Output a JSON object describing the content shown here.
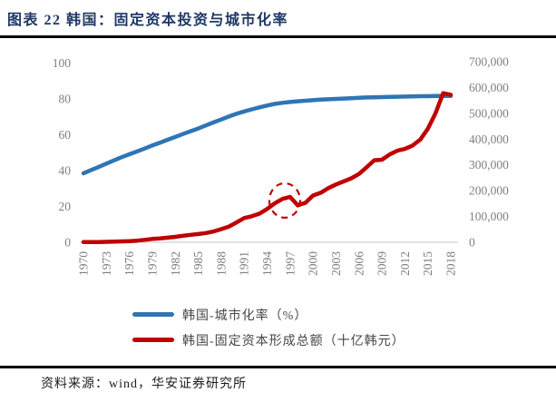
{
  "title": "图表 22 韩国：固定资本投资与城市化率",
  "source": "资料来源：wind，华安证券研究所",
  "colors": {
    "title": "#1f3864",
    "rule": "#000000",
    "axis_label": "#7f7f7f",
    "baseline": "#d9d9d9",
    "urbanization_line": "#2e75b6",
    "gfcf_line": "#c00000",
    "annotation": "#c00000",
    "legend_text": "#474747"
  },
  "chart_data": {
    "type": "line",
    "title": "韩国：固定资本投资与城市化率",
    "x": [
      1970,
      1971,
      1972,
      1973,
      1974,
      1975,
      1976,
      1977,
      1978,
      1979,
      1980,
      1981,
      1982,
      1983,
      1984,
      1985,
      1986,
      1987,
      1988,
      1989,
      1990,
      1991,
      1992,
      1993,
      1994,
      1995,
      1996,
      1997,
      1998,
      1999,
      2000,
      2001,
      2002,
      2003,
      2004,
      2005,
      2006,
      2007,
      2008,
      2009,
      2010,
      2011,
      2012,
      2013,
      2014,
      2015,
      2016,
      2017,
      2018
    ],
    "x_tick_labels": [
      "1970",
      "1973",
      "1976",
      "1979",
      "1982",
      "1985",
      "1988",
      "1991",
      "1994",
      "1997",
      "2000",
      "2003",
      "2006",
      "2009",
      "2012",
      "2015",
      "2018"
    ],
    "series": [
      {
        "name": "韩国-城市化率（%）",
        "axis": "left",
        "color": "#2e75b6",
        "values": [
          38.5,
          40.3,
          42.1,
          43.9,
          45.7,
          47.5,
          49.1,
          50.7,
          52.3,
          54.0,
          55.6,
          57.2,
          58.8,
          60.4,
          62.0,
          63.5,
          65.2,
          66.9,
          68.5,
          70.2,
          71.7,
          73.0,
          74.2,
          75.3,
          76.3,
          77.2,
          77.8,
          78.3,
          78.7,
          79.0,
          79.3,
          79.6,
          79.8,
          80.0,
          80.2,
          80.4,
          80.6,
          80.8,
          80.9,
          81.0,
          81.1,
          81.2,
          81.3,
          81.4,
          81.5,
          81.5,
          81.6,
          81.6,
          81.6
        ]
      },
      {
        "name": "韩国-固定资本形成总额（十亿韩元）",
        "axis": "right",
        "color": "#c00000",
        "values": [
          700,
          900,
          1100,
          1700,
          2600,
          3500,
          4700,
          6500,
          9500,
          13000,
          15000,
          18000,
          21000,
          25500,
          29000,
          32000,
          36000,
          42000,
          51000,
          61000,
          77000,
          94000,
          101000,
          111000,
          129000,
          151000,
          168000,
          176000,
          143000,
          153000,
          181000,
          192000,
          210000,
          224000,
          236000,
          248000,
          265000,
          291000,
          318000,
          320000,
          340000,
          355000,
          362000,
          375000,
          398000,
          440000,
          500000,
          578000,
          572000
        ]
      }
    ],
    "left_axis": {
      "ticks": [
        0,
        20,
        40,
        60,
        80,
        100
      ],
      "range": [
        0,
        100
      ]
    },
    "right_axis": {
      "ticks": [
        0,
        100000,
        200000,
        300000,
        400000,
        500000,
        600000,
        700000
      ],
      "range": [
        0,
        700000
      ],
      "tick_format": "comma"
    },
    "grid": false,
    "legend_position": "bottom",
    "annotation": {
      "type": "dashed-circle",
      "year": 1996.3,
      "right_value": 162000,
      "note": "1997-1998 dip circled"
    }
  }
}
